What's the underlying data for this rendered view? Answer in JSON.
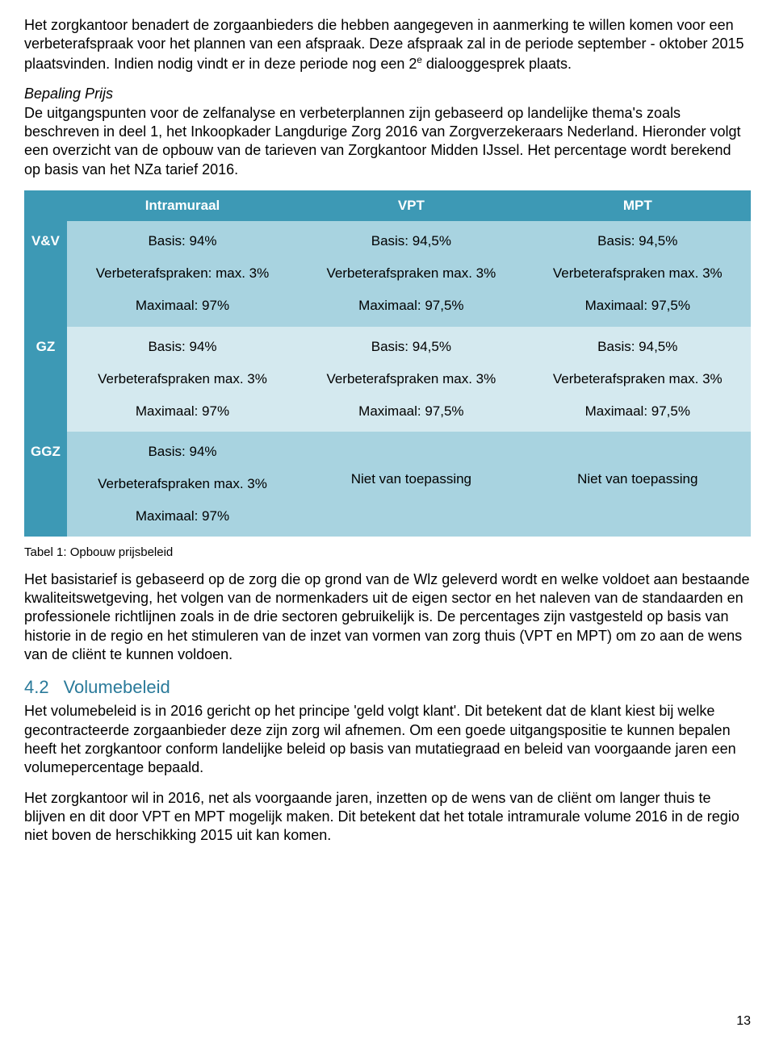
{
  "colors": {
    "header_bg": "#3d99b5",
    "header_text": "#ffffff",
    "rowA_bg": "#a8d3e0",
    "rowB_bg": "#d4e9ef",
    "section_color": "#2a7a9a"
  },
  "para1_a": "Het zorgkantoor benadert de zorgaanbieders die hebben aangegeven in aanmerking te willen komen voor een verbeterafspraak voor het plannen van een afspraak. Deze afspraak zal in de periode september - oktober 2015 plaatsvinden. Indien nodig vindt er in deze periode nog een 2",
  "para1_sup": "e",
  "para1_b": " dialooggesprek plaats.",
  "italic_heading": "Bepaling Prijs",
  "para2": "De uitgangspunten voor de zelfanalyse en verbeterplannen zijn gebaseerd op landelijke thema's zoals beschreven in deel 1, het Inkoopkader Langdurige Zorg 2016 van Zorgverzekeraars Nederland. Hieronder volgt een overzicht van de opbouw van de tarieven van Zorgkantoor Midden IJssel. Het percentage wordt berekend op basis van het NZa tarief 2016.",
  "table": {
    "columns": [
      "Intramuraal",
      "VPT",
      "MPT"
    ],
    "rows": [
      {
        "label": "V&V",
        "cells": [
          {
            "lines": [
              "Basis: 94%",
              "Verbeterafspraken: max. 3%",
              "Maximaal: 97%"
            ]
          },
          {
            "lines": [
              "Basis: 94,5%",
              "Verbeterafspraken max. 3%",
              "Maximaal: 97,5%"
            ]
          },
          {
            "lines": [
              "Basis: 94,5%",
              "Verbeterafspraken max. 3%",
              "Maximaal: 97,5%"
            ]
          }
        ]
      },
      {
        "label": "GZ",
        "cells": [
          {
            "lines": [
              "Basis: 94%",
              "Verbeterafspraken max. 3%",
              "Maximaal: 97%"
            ]
          },
          {
            "lines": [
              "Basis: 94,5%",
              "Verbeterafspraken max. 3%",
              "Maximaal: 97,5%"
            ]
          },
          {
            "lines": [
              "Basis: 94,5%",
              "Verbeterafspraken max. 3%",
              "Maximaal: 97,5%"
            ]
          }
        ]
      },
      {
        "label": "GGZ",
        "cells": [
          {
            "lines": [
              "Basis: 94%",
              "Verbeterafspraken max. 3%",
              "Maximaal: 97%"
            ]
          },
          {
            "na": "Niet van toepassing"
          },
          {
            "na": "Niet van toepassing"
          }
        ]
      }
    ]
  },
  "table_caption": "Tabel 1: Opbouw prijsbeleid",
  "para3": "Het basistarief is gebaseerd  op de zorg die op grond van de Wlz geleverd wordt en welke voldoet aan bestaande kwaliteitswetgeving, het volgen van de normenkaders uit de eigen sector en het naleven van de standaarden en professionele richtlijnen zoals in de drie sectoren gebruikelijk is. De percentages zijn vastgesteld op basis van historie in de regio en het stimuleren van de inzet van vormen van zorg thuis (VPT en MPT) om zo aan de wens van de cliënt te kunnen voldoen.",
  "section": {
    "num": "4.2",
    "title": "Volumebeleid"
  },
  "para4": "Het volumebeleid is in 2016 gericht op het principe 'geld volgt klant'. Dit betekent dat de klant kiest bij welke gecontracteerde zorgaanbieder deze zijn zorg wil afnemen.  Om een goede uitgangspositie te kunnen bepalen heeft het zorgkantoor conform landelijke beleid op basis van mutatiegraad en beleid van voorgaande jaren een volumepercentage bepaald.",
  "para5": "Het zorgkantoor wil in 2016, net als voorgaande jaren, inzetten op de wens van de cliënt om langer thuis te blijven en dit door VPT en MPT mogelijk maken. Dit betekent dat het totale intramurale volume 2016 in de regio niet boven de herschikking 2015 uit kan komen.",
  "page_number": "13"
}
